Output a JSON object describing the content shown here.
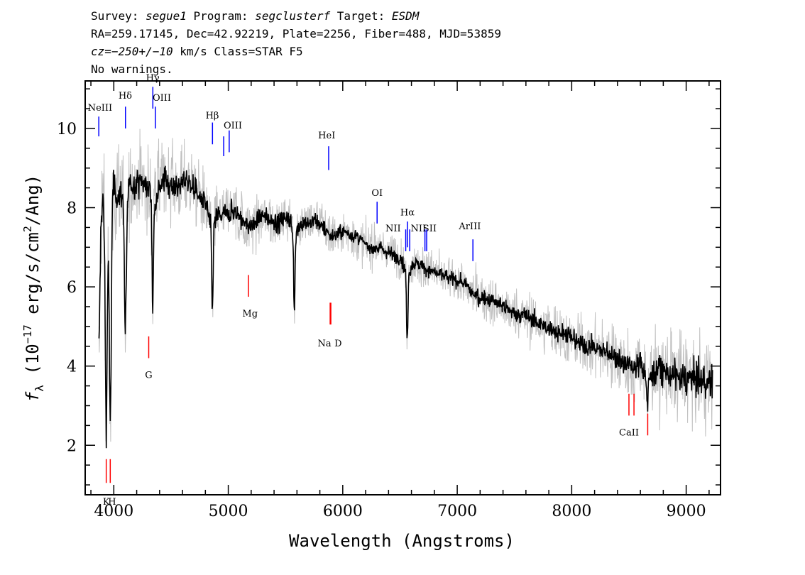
{
  "header": {
    "line1": {
      "survey_label": "Survey: ",
      "survey": "segue1",
      "program_label": " Program: ",
      "program": "segclusterf",
      "target_label": " Target: ",
      "target": "ESDM"
    },
    "line2": "RA=259.17145, Dec=42.92219, Plate=2256, Fiber=488, MJD=53859",
    "line3": {
      "cz_label": "cz=",
      "cz_value": "−250+/−10",
      "cz_unit": " km/s",
      "class": " Class=STAR F5"
    },
    "line4": "No warnings."
  },
  "colors": {
    "flux": "#000000",
    "error_band": "#c0c0c0",
    "emission_marker": "#0000ff",
    "absorption_marker": "#ff0000",
    "axes": "#000000"
  },
  "chart_data": {
    "type": "line",
    "xlabel": "Wavelength (Angstroms)",
    "ylabel_prefix": "f",
    "ylabel_sub": "λ",
    "ylabel_mid": " (10",
    "ylabel_exp": "−17",
    "ylabel_units": " erg/s/cm",
    "ylabel_sq": "2",
    "ylabel_end": "/Ang)",
    "xlim": [
      3750,
      9300
    ],
    "ylim": [
      0.75,
      11.2
    ],
    "x_ticks": [
      4000,
      5000,
      6000,
      7000,
      8000,
      9000
    ],
    "x_tick_labels": [
      "4000",
      "5000",
      "6000",
      "7000",
      "8000",
      "9000"
    ],
    "y_ticks": [
      2,
      4,
      6,
      8,
      10
    ],
    "y_tick_labels": [
      "2",
      "4",
      "6",
      "8",
      "10"
    ],
    "x_minor_step": 200,
    "y_minor_step": 0.5,
    "series": [
      {
        "kind": "flux",
        "x": [
          3870,
          3900,
          3935,
          3960,
          3985,
          4010,
          4050,
          4080,
          4101,
          4130,
          4180,
          4230,
          4290,
          4320,
          4340,
          4360,
          4400,
          4450,
          4500,
          4560,
          4620,
          4680,
          4740,
          4800,
          4861,
          4900,
          4950,
          5000,
          5060,
          5120,
          5172,
          5230,
          5300,
          5370,
          5440,
          5510,
          5577,
          5640,
          5700,
          5760,
          5830,
          5893,
          5950,
          6010,
          6080,
          6150,
          6220,
          6300,
          6380,
          6450,
          6510,
          6563,
          6620,
          6700,
          6780,
          6860,
          6950,
          7050,
          7150,
          7250,
          7350,
          7450,
          7550,
          7650,
          7750,
          7850,
          7950,
          8050,
          8150,
          8250,
          8350,
          8450,
          8542,
          8600,
          8662,
          8750,
          8850,
          8950,
          9050,
          9150,
          9230
        ],
        "y": [
          7.9,
          8.1,
          8.4,
          8.5,
          8.6,
          8.4,
          8.3,
          8.5,
          8.0,
          8.5,
          8.6,
          8.7,
          8.5,
          8.4,
          7.9,
          8.2,
          8.6,
          8.7,
          8.6,
          8.5,
          8.7,
          8.6,
          8.3,
          8.1,
          7.4,
          7.8,
          7.8,
          7.9,
          7.9,
          7.7,
          7.5,
          7.6,
          7.8,
          7.7,
          7.6,
          7.8,
          7.4,
          7.6,
          7.6,
          7.7,
          7.5,
          7.3,
          7.3,
          7.4,
          7.3,
          7.2,
          7.0,
          7.0,
          6.9,
          6.8,
          6.7,
          6.3,
          6.6,
          6.5,
          6.4,
          6.3,
          6.2,
          6.1,
          5.8,
          5.7,
          5.6,
          5.4,
          5.3,
          5.2,
          5.0,
          4.9,
          4.8,
          4.6,
          4.5,
          4.4,
          4.3,
          4.1,
          3.9,
          4.1,
          3.7,
          3.9,
          3.8,
          3.7,
          3.7,
          3.6,
          3.6
        ]
      },
      {
        "kind": "error",
        "sigma": [
          1.3,
          1.2,
          1.1,
          1.0,
          1.0,
          0.9,
          0.9,
          0.9,
          0.9,
          0.85,
          0.8,
          0.8,
          0.8,
          0.8,
          0.8,
          0.8,
          0.75,
          0.75,
          0.7,
          0.7,
          0.7,
          0.7,
          0.65,
          0.65,
          0.65,
          0.6,
          0.6,
          0.6,
          0.55,
          0.55,
          0.55,
          0.55,
          0.5,
          0.5,
          0.5,
          0.5,
          0.5,
          0.5,
          0.45,
          0.45,
          0.45,
          0.45,
          0.4,
          0.4,
          0.4,
          0.4,
          0.4,
          0.4,
          0.4,
          0.4,
          0.4,
          0.4,
          0.4,
          0.4,
          0.4,
          0.4,
          0.4,
          0.4,
          0.45,
          0.45,
          0.45,
          0.45,
          0.5,
          0.5,
          0.5,
          0.55,
          0.55,
          0.55,
          0.6,
          0.6,
          0.6,
          0.65,
          0.65,
          0.7,
          0.7,
          0.75,
          0.8,
          0.85,
          0.9,
          0.95,
          1.0
        ]
      }
    ],
    "absorption_features": [
      {
        "x": 3870,
        "depth": 3.5
      },
      {
        "x": 3934,
        "depth": 5.8
      },
      {
        "x": 3969,
        "depth": 6.0
      },
      {
        "x": 4101,
        "depth": 3.2
      },
      {
        "x": 4340,
        "depth": 2.4
      },
      {
        "x": 4861,
        "depth": 2.0
      },
      {
        "x": 5577,
        "depth": 2.0
      },
      {
        "x": 6563,
        "depth": 1.7
      },
      {
        "x": 8662,
        "depth": 0.8
      }
    ],
    "emission_lines": [
      {
        "label": "NeIII",
        "x": 3869,
        "y0": 9.8,
        "y1": 10.3,
        "lx": 3880,
        "ly": 10.45
      },
      {
        "label": "Hδ",
        "x": 4102,
        "y0": 10.0,
        "y1": 10.55,
        "lx": 4100,
        "ly": 10.75
      },
      {
        "label": "Hγ",
        "x": 4341,
        "y0": 10.5,
        "y1": 11.05,
        "lx": 4340,
        "ly": 11.2
      },
      {
        "label": "OIII",
        "x": 4363,
        "y0": 10.0,
        "y1": 10.55,
        "lx": 4420,
        "ly": 10.7
      },
      {
        "label": "Hβ",
        "x": 4862,
        "y0": 9.6,
        "y1": 10.15,
        "lx": 4860,
        "ly": 10.25
      },
      {
        "label": "OIII",
        "x": 4960,
        "y0": 9.3,
        "y1": 9.8,
        "lx": 5040,
        "ly": 10.0
      },
      {
        "label": "OIII",
        "x": 5008,
        "y0": 9.4,
        "y1": 9.95,
        "lx": 5008,
        "ly": 10.0,
        "hidden": true
      },
      {
        "label": "HeI",
        "x": 5877,
        "y0": 8.95,
        "y1": 9.55,
        "lx": 5860,
        "ly": 9.75
      },
      {
        "label": "OI",
        "x": 6300,
        "y0": 7.6,
        "y1": 8.15,
        "lx": 6300,
        "ly": 8.3
      },
      {
        "label": "NII",
        "x": 6550,
        "y0": 6.9,
        "y1": 7.45,
        "lx": 6440,
        "ly": 7.4
      },
      {
        "label": "Hα",
        "x": 6565,
        "y0": 7.0,
        "y1": 7.65,
        "lx": 6565,
        "ly": 7.8
      },
      {
        "label": "NII",
        "x": 6585,
        "y0": 6.9,
        "y1": 7.45,
        "lx": 6660,
        "ly": 7.4
      },
      {
        "label": "SII",
        "x": 6718,
        "y0": 6.9,
        "y1": 7.45,
        "lx": 6760,
        "ly": 7.4
      },
      {
        "label": "SII",
        "x": 6733,
        "y0": 6.9,
        "y1": 7.45,
        "lx": 6733,
        "ly": 7.4,
        "hidden": true
      },
      {
        "label": "ArIII",
        "x": 7137,
        "y0": 6.65,
        "y1": 7.2,
        "lx": 7110,
        "ly": 7.45
      }
    ],
    "absorption_lines": [
      {
        "label": "K",
        "x": 3934,
        "y0": 1.05,
        "y1": 1.65,
        "lx": 3934,
        "ly": 0.5
      },
      {
        "label": "H",
        "x": 3969,
        "y0": 1.05,
        "y1": 1.65,
        "lx": 3985,
        "ly": 0.5
      },
      {
        "label": "G",
        "x": 4305,
        "y0": 4.2,
        "y1": 4.75,
        "lx": 4305,
        "ly": 3.7
      },
      {
        "label": "Mg",
        "x": 5176,
        "y0": 5.75,
        "y1": 6.3,
        "lx": 5190,
        "ly": 5.25
      },
      {
        "label": "Na",
        "x": 5890,
        "y0": 5.05,
        "y1": 5.6,
        "lx": 5840,
        "ly": 4.5
      },
      {
        "label": "D",
        "x": 5896,
        "y0": 5.05,
        "y1": 5.6,
        "lx": 5960,
        "ly": 4.5
      },
      {
        "label": "CaII",
        "x": 8500,
        "y0": 2.75,
        "y1": 3.3,
        "lx": 8500,
        "ly": 2.25
      },
      {
        "label": "CaII",
        "x": 8544,
        "y0": 2.75,
        "y1": 3.3,
        "lx": 8544,
        "ly": 2.25,
        "hidden": true
      },
      {
        "label": "CaII",
        "x": 8664,
        "y0": 2.25,
        "y1": 2.8,
        "lx": 8664,
        "ly": 2.25,
        "hidden": true
      }
    ]
  }
}
